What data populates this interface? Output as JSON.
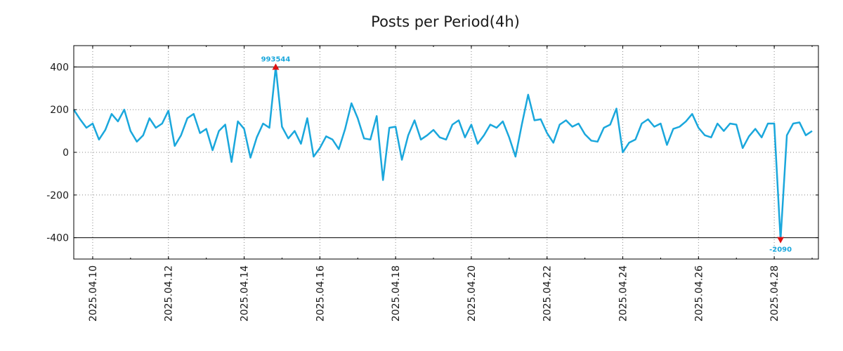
{
  "chart_data": {
    "type": "line",
    "title": "Posts per Period(4h)",
    "xlabel": "",
    "ylabel": "",
    "x_start": "2025.04.09 12:00",
    "x_end": "2025.04.29 04:00",
    "interval_hours": 4,
    "ylim": [
      -500,
      500
    ],
    "yticks": [
      -400,
      -200,
      0,
      200,
      400
    ],
    "ytick_labels": [
      "-400",
      "-200",
      "0",
      "200",
      "400"
    ],
    "xticks": [
      "2025.04.10",
      "2025.04.12",
      "2025.04.14",
      "2025.04.16",
      "2025.04.18",
      "2025.04.20",
      "2025.04.22",
      "2025.04.24",
      "2025.04.26",
      "2025.04.28"
    ],
    "reference_lines": [
      400,
      -400
    ],
    "grid": true,
    "line_color": "#1aa7dc",
    "marker_color": "#dd1111",
    "series": [
      {
        "values": [
          200,
          155,
          115,
          135,
          60,
          105,
          180,
          145,
          200,
          100,
          50,
          80,
          160,
          115,
          135,
          195,
          30,
          80,
          160,
          180,
          90,
          110,
          10,
          100,
          130,
          -45,
          145,
          110,
          -25,
          70,
          135,
          115,
          400,
          120,
          65,
          100,
          40,
          160,
          -20,
          20,
          75,
          60,
          15,
          110,
          230,
          160,
          65,
          60,
          170,
          -130,
          115,
          120,
          -35,
          80,
          150,
          60,
          80,
          105,
          70,
          60,
          130,
          150,
          70,
          130,
          40,
          80,
          130,
          115,
          145,
          70,
          -20,
          130,
          270,
          150,
          155,
          90,
          45,
          130,
          150,
          120,
          135,
          85,
          55,
          50,
          115,
          130,
          205,
          0,
          45,
          60,
          135,
          155,
          120,
          135,
          35,
          110,
          120,
          145,
          180,
          115,
          80,
          70,
          135,
          100,
          135,
          130,
          20,
          75,
          110,
          70,
          135,
          135,
          -410,
          80,
          135,
          140,
          80,
          100
        ]
      }
    ],
    "annotations": [
      {
        "index": 32,
        "value": 400,
        "label": "993544",
        "marker": "triangle-up"
      },
      {
        "index": 112,
        "value": -410,
        "label": "-2090",
        "marker": "triangle-down"
      }
    ]
  }
}
